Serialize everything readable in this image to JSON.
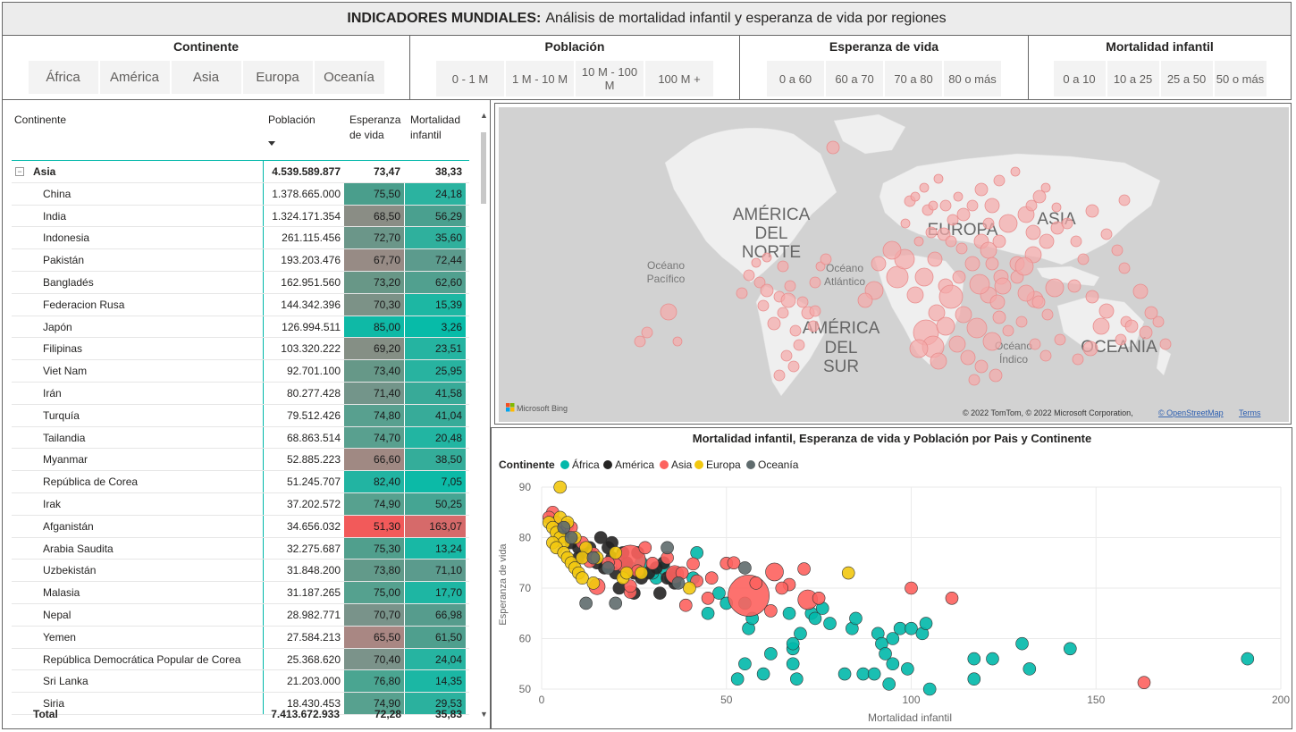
{
  "header": {
    "title_bold": "INDICADORES MUNDIALES:",
    "title_rest": "Análisis de mortalidad infantil y esperanza de vida por regiones"
  },
  "filters": {
    "continente": {
      "title": "Continente",
      "options": [
        "África",
        "América",
        "Asia",
        "Europa",
        "Oceanía"
      ]
    },
    "poblacion": {
      "title": "Población",
      "options": [
        "0 - 1 M",
        "1 M - 10 M",
        "10 M - 100 M",
        "100 M +"
      ]
    },
    "esperanza": {
      "title": "Esperanza de vida",
      "options": [
        "0 a 60",
        "60 a 70",
        "70 a 80",
        "80 o más"
      ]
    },
    "mortalidad": {
      "title": "Mortalidad infantil",
      "options": [
        "0 a 10",
        "10 a 25",
        "25 a 50",
        "50 o más"
      ]
    }
  },
  "table": {
    "headers": {
      "continente": "Continente",
      "poblacion": "Población",
      "esperanza": "Esperanza de vida",
      "mortalidad": "Mortalidad infantil"
    },
    "group": {
      "expander": "−",
      "name": "Asia",
      "poblacion": "4.539.589.877",
      "esperanza": "73,47",
      "mortalidad": "38,33"
    },
    "rows": [
      {
        "name": "China",
        "poblacion": "1.378.665.000",
        "esperanza": "75,50",
        "mortalidad": "24,18",
        "life_color": "#4a9e8c",
        "mort_color": "#2bb3a0"
      },
      {
        "name": "India",
        "poblacion": "1.324.171.354",
        "esperanza": "68,50",
        "mortalidad": "56,29",
        "life_color": "#8a8d85",
        "mort_color": "#4aa08f"
      },
      {
        "name": "Indonesia",
        "poblacion": "261.115.456",
        "esperanza": "72,70",
        "mortalidad": "35,60",
        "life_color": "#6b9689",
        "mort_color": "#2fb09d"
      },
      {
        "name": "Pakistán",
        "poblacion": "193.203.476",
        "esperanza": "67,70",
        "mortalidad": "72,44",
        "life_color": "#978b85",
        "mort_color": "#5c9b8d"
      },
      {
        "name": "Bangladés",
        "poblacion": "162.951.560",
        "esperanza": "73,20",
        "mortalidad": "62,60",
        "life_color": "#689787",
        "mort_color": "#51a08f"
      },
      {
        "name": "Federacion Rusa",
        "poblacion": "144.342.396",
        "esperanza": "70,30",
        "mortalidad": "15,39",
        "life_color": "#7c9287",
        "mort_color": "#1db7a3"
      },
      {
        "name": "Japón",
        "poblacion": "126.994.511",
        "esperanza": "85,00",
        "mortalidad": "3,26",
        "life_color": "#0fb9a6",
        "mort_color": "#07bba8"
      },
      {
        "name": "Filipinas",
        "poblacion": "103.320.222",
        "esperanza": "69,20",
        "mortalidad": "23,51",
        "life_color": "#858f85",
        "mort_color": "#25b4a1"
      },
      {
        "name": "Viet Nam",
        "poblacion": "92.701.100",
        "esperanza": "73,40",
        "mortalidad": "25,95",
        "life_color": "#669888",
        "mort_color": "#28b3a0"
      },
      {
        "name": "Irán",
        "poblacion": "80.277.428",
        "esperanza": "71,40",
        "mortalidad": "41,58",
        "life_color": "#73958a",
        "mort_color": "#38aa98"
      },
      {
        "name": "Turquía",
        "poblacion": "79.512.426",
        "esperanza": "74,80",
        "mortalidad": "41,04",
        "life_color": "#58a08f",
        "mort_color": "#37ab99"
      },
      {
        "name": "Tailandia",
        "poblacion": "68.863.514",
        "esperanza": "74,70",
        "mortalidad": "20,48",
        "life_color": "#59a08f",
        "mort_color": "#22b5a2"
      },
      {
        "name": "Myanmar",
        "poblacion": "52.885.223",
        "esperanza": "66,60",
        "mortalidad": "38,50",
        "life_color": "#a08983",
        "mort_color": "#34ad9a"
      },
      {
        "name": "República de Corea",
        "poblacion": "51.245.707",
        "esperanza": "82,40",
        "mortalidad": "7,05",
        "life_color": "#22b4a2",
        "mort_color": "#0cbaa7"
      },
      {
        "name": "Irak",
        "poblacion": "37.202.572",
        "esperanza": "74,90",
        "mortalidad": "50,25",
        "life_color": "#57a18f",
        "mort_color": "#45a593"
      },
      {
        "name": "Afganistán",
        "poblacion": "34.656.032",
        "esperanza": "51,30",
        "mortalidad": "163,07",
        "life_color": "#f25a5a",
        "mort_color": "#d66a6a"
      },
      {
        "name": "Arabia Saudita",
        "poblacion": "32.275.687",
        "esperanza": "75,30",
        "mortalidad": "13,24",
        "life_color": "#509f8d",
        "mort_color": "#18b8a5"
      },
      {
        "name": "Uzbekistán",
        "poblacion": "31.848.200",
        "esperanza": "73,80",
        "mortalidad": "71,10",
        "life_color": "#629a8a",
        "mort_color": "#5b9b8d"
      },
      {
        "name": "Malasia",
        "poblacion": "31.187.265",
        "esperanza": "75,00",
        "mortalidad": "17,70",
        "life_color": "#55a18f",
        "mort_color": "#1eb6a3"
      },
      {
        "name": "Nepal",
        "poblacion": "28.982.771",
        "esperanza": "70,70",
        "mortalidad": "66,98",
        "life_color": "#79938a",
        "mort_color": "#569c8d"
      },
      {
        "name": "Yemen",
        "poblacion": "27.584.213",
        "esperanza": "65,50",
        "mortalidad": "61,50",
        "life_color": "#a98783",
        "mort_color": "#4f9f8e"
      },
      {
        "name": "República Democrática Popular de Corea",
        "poblacion": "25.368.620",
        "esperanza": "70,40",
        "mortalidad": "24,04",
        "life_color": "#7b938a",
        "mort_color": "#26b4a1"
      },
      {
        "name": "Sri Lanka",
        "poblacion": "21.203.000",
        "esperanza": "76,80",
        "mortalidad": "14,35",
        "life_color": "#4aa591",
        "mort_color": "#1bb7a4"
      },
      {
        "name": "Siria",
        "poblacion": "18.430.453",
        "esperanza": "74,90",
        "mortalidad": "29,53",
        "life_color": "#57a18f",
        "mort_color": "#2bb19e"
      }
    ],
    "total": {
      "label": "Total",
      "poblacion": "7.413.672.933",
      "esperanza": "72,28",
      "mortalidad": "35,83"
    },
    "scroll": {
      "up": "▲",
      "down": "▼"
    }
  },
  "map": {
    "labels": [
      {
        "text": "AMÉRICA",
        "kind": "continent"
      },
      {
        "text": "DEL",
        "kind": "continent"
      },
      {
        "text": "NORTE",
        "kind": "continent"
      },
      {
        "text": "EUROPA",
        "kind": "continent"
      },
      {
        "text": "ASIA",
        "kind": "continent"
      },
      {
        "text": "AMÉRICA",
        "kind": "continent"
      },
      {
        "text": "DEL",
        "kind": "continent"
      },
      {
        "text": "SUR",
        "kind": "continent"
      },
      {
        "text": "OCEANÍA",
        "kind": "continent"
      },
      {
        "text": "Océano",
        "kind": "ocean"
      },
      {
        "text": "Pacífico",
        "kind": "ocean"
      },
      {
        "text": "Océano",
        "kind": "ocean"
      },
      {
        "text": "Atlántico",
        "kind": "ocean"
      },
      {
        "text": "Océano",
        "kind": "ocean"
      },
      {
        "text": "Índico",
        "kind": "ocean"
      }
    ],
    "brand": "Microsoft Bing",
    "attribution": "© 2022 TomTom, © 2022 Microsoft Corporation,",
    "osm_link": "© OpenStreetMap",
    "terms_link": "Terms",
    "bubble_color": "#f4a9a9"
  },
  "chart_data": {
    "type": "scatter",
    "title": "Mortalidad infantil, Esperanza de vida y Población por Pais y Continente",
    "xlabel": "Mortalidad infantil",
    "ylabel": "Esperanza de vida",
    "xlim": [
      0,
      200
    ],
    "ylim": [
      50,
      90
    ],
    "xticks": [
      0,
      50,
      100,
      150,
      200
    ],
    "yticks": [
      50,
      60,
      70,
      80,
      90
    ],
    "legend": {
      "title": "Continente",
      "placement": "top-left"
    },
    "series": [
      {
        "name": "África",
        "color": "#01b8aa",
        "points": [
          [
            42,
            77
          ],
          [
            41,
            72
          ],
          [
            45,
            65
          ],
          [
            50,
            67
          ],
          [
            55,
            67
          ],
          [
            56,
            62
          ],
          [
            57,
            64
          ],
          [
            62,
            57
          ],
          [
            60,
            53
          ],
          [
            55,
            55
          ],
          [
            53,
            52
          ],
          [
            67,
            65
          ],
          [
            68,
            58
          ],
          [
            68,
            59
          ],
          [
            68,
            55
          ],
          [
            70,
            61
          ],
          [
            69,
            52
          ],
          [
            73,
            65
          ],
          [
            74,
            64
          ],
          [
            76,
            66
          ],
          [
            78,
            63
          ],
          [
            82,
            53
          ],
          [
            84,
            62
          ],
          [
            85,
            64
          ],
          [
            87,
            53
          ],
          [
            90,
            53
          ],
          [
            91,
            61
          ],
          [
            92,
            59
          ],
          [
            93,
            57
          ],
          [
            95,
            55
          ],
          [
            94,
            51
          ],
          [
            95,
            60
          ],
          [
            97,
            62
          ],
          [
            99,
            54
          ],
          [
            100,
            62
          ],
          [
            103,
            61
          ],
          [
            104,
            63
          ],
          [
            105,
            50
          ],
          [
            117,
            56
          ],
          [
            117,
            52
          ],
          [
            122,
            56
          ],
          [
            130,
            59
          ],
          [
            132,
            54
          ],
          [
            143,
            58
          ],
          [
            191,
            56
          ],
          [
            24,
            74
          ],
          [
            27,
            75
          ],
          [
            31,
            72
          ],
          [
            33,
            74
          ],
          [
            35,
            72
          ],
          [
            30,
            73
          ],
          [
            48,
            69
          ]
        ]
      },
      {
        "name": "América",
        "color": "#252423",
        "points": [
          [
            6,
            81
          ],
          [
            8,
            79
          ],
          [
            10,
            78
          ],
          [
            12,
            77
          ],
          [
            14,
            76
          ],
          [
            15,
            75
          ],
          [
            17,
            74
          ],
          [
            18,
            78
          ],
          [
            19,
            76
          ],
          [
            20,
            73
          ],
          [
            22,
            77
          ],
          [
            23,
            75
          ],
          [
            25,
            73
          ],
          [
            26,
            77
          ],
          [
            27,
            72
          ],
          [
            29,
            73
          ],
          [
            31,
            74
          ],
          [
            33,
            75
          ],
          [
            34,
            72
          ],
          [
            36,
            73
          ],
          [
            21,
            70
          ],
          [
            25,
            69
          ],
          [
            32,
            69
          ],
          [
            36,
            71
          ],
          [
            10,
            76
          ],
          [
            13,
            78
          ],
          [
            16,
            80
          ],
          [
            19,
            79
          ]
        ]
      },
      {
        "name": "Asia",
        "color": "#fd625e",
        "points": [
          [
            24,
            75.5
          ],
          [
            56,
            68.5
          ],
          [
            36,
            72.7
          ],
          [
            72,
            67.7
          ],
          [
            63,
            73.2
          ],
          [
            15,
            70.3
          ],
          [
            3,
            85
          ],
          [
            24,
            69.2
          ],
          [
            26,
            73.4
          ],
          [
            42,
            71.4
          ],
          [
            41,
            74.8
          ],
          [
            20,
            74.7
          ],
          [
            39,
            66.6
          ],
          [
            7,
            82.4
          ],
          [
            50,
            74.9
          ],
          [
            163,
            51.3
          ],
          [
            13,
            75.3
          ],
          [
            71,
            73.8
          ],
          [
            18,
            75
          ],
          [
            67,
            70.7
          ],
          [
            62,
            65.5
          ],
          [
            24,
            70.4
          ],
          [
            14,
            76.8
          ],
          [
            30,
            74.9
          ],
          [
            2,
            84
          ],
          [
            4,
            83
          ],
          [
            8,
            82
          ],
          [
            11,
            79
          ],
          [
            28,
            78
          ],
          [
            34,
            76
          ],
          [
            38,
            73
          ],
          [
            46,
            72
          ],
          [
            52,
            75
          ],
          [
            58,
            71
          ],
          [
            65,
            70
          ],
          [
            75,
            68
          ],
          [
            100,
            70
          ],
          [
            111,
            68
          ],
          [
            45,
            68
          ]
        ]
      },
      {
        "name": "Europa",
        "color": "#f2c80f",
        "points": [
          [
            5,
            90
          ],
          [
            2,
            83
          ],
          [
            3,
            82
          ],
          [
            4,
            81
          ],
          [
            5,
            80
          ],
          [
            6,
            79
          ],
          [
            3,
            79
          ],
          [
            4,
            78
          ],
          [
            6,
            77
          ],
          [
            7,
            76
          ],
          [
            8,
            75
          ],
          [
            9,
            74
          ],
          [
            10,
            73
          ],
          [
            11,
            72
          ],
          [
            12,
            78
          ],
          [
            14,
            71
          ],
          [
            22,
            72
          ],
          [
            23,
            73
          ],
          [
            27,
            73
          ],
          [
            20,
            77
          ],
          [
            83,
            73
          ],
          [
            40,
            70
          ],
          [
            15,
            76
          ],
          [
            5,
            84
          ],
          [
            7,
            83
          ],
          [
            9,
            80
          ],
          [
            11,
            76
          ]
        ]
      },
      {
        "name": "Oceanía",
        "color": "#5f6b6d",
        "points": [
          [
            6,
            82
          ],
          [
            8,
            80
          ],
          [
            14,
            76
          ],
          [
            18,
            74
          ],
          [
            12,
            67
          ],
          [
            20,
            67
          ],
          [
            34,
            78
          ],
          [
            37,
            71
          ],
          [
            55,
            74
          ]
        ]
      }
    ]
  }
}
